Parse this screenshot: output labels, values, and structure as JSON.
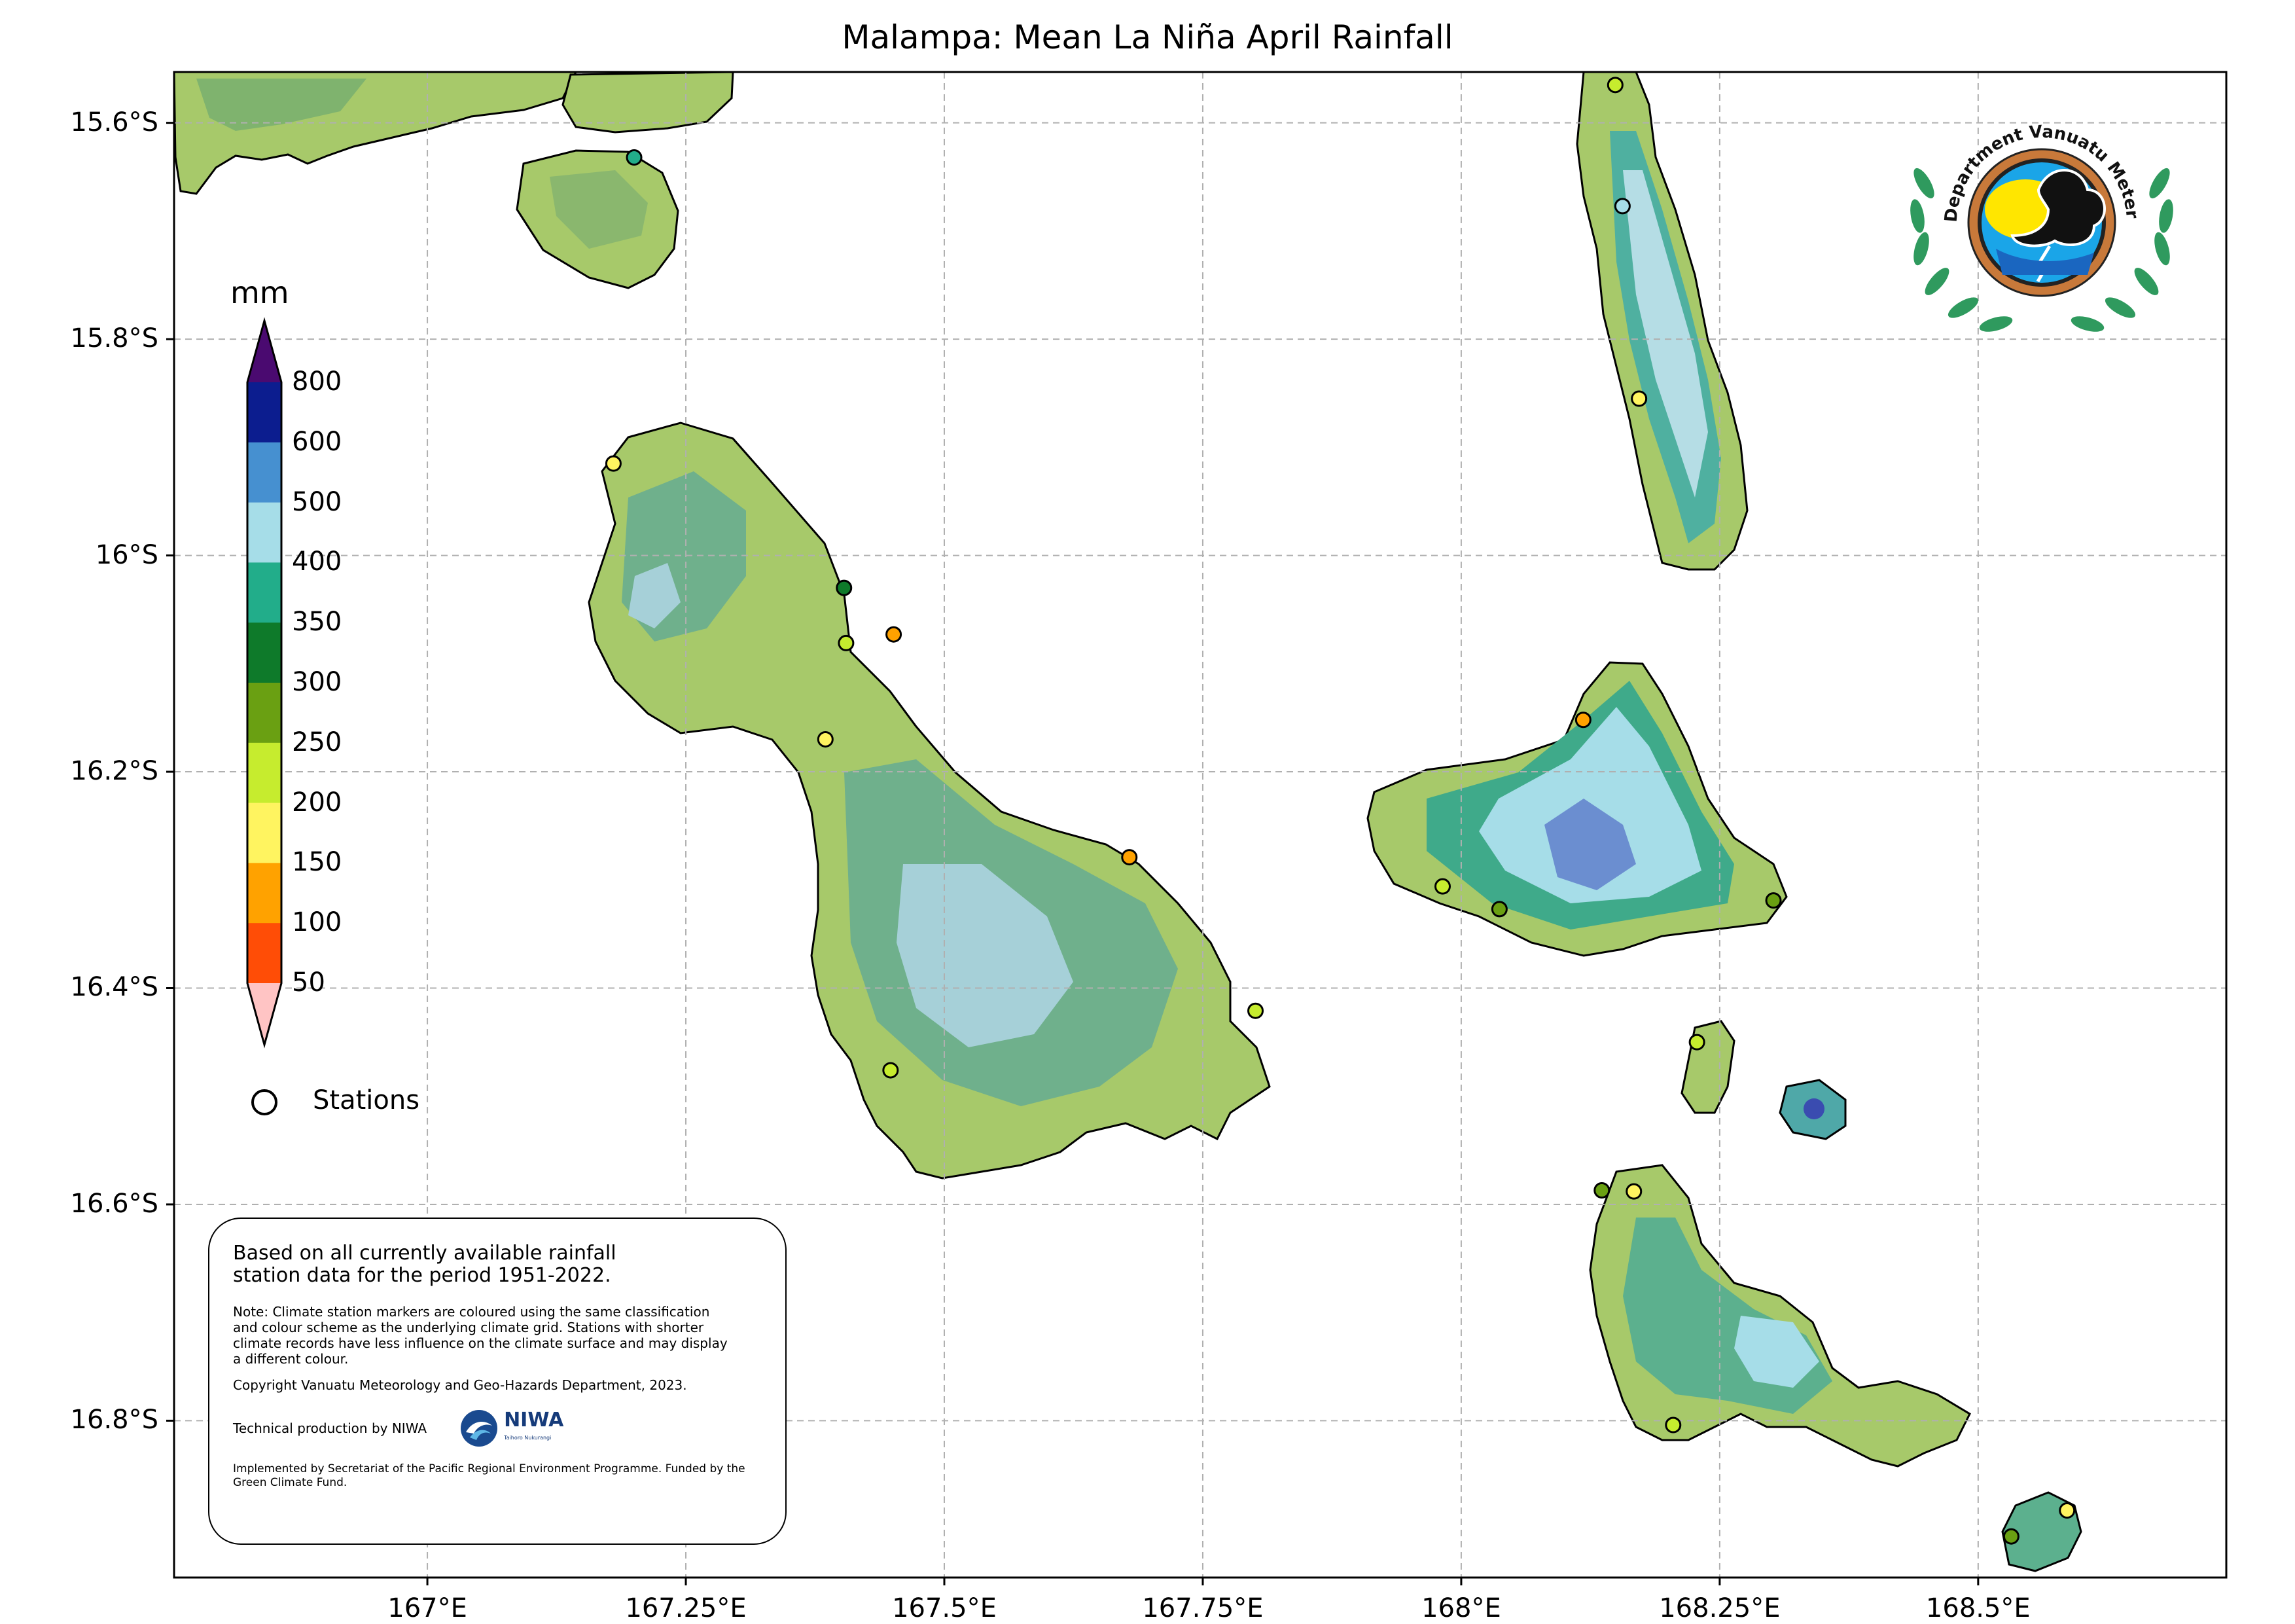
{
  "title": "Malampa: Mean La Niña April Rainfall",
  "axes": {
    "lat_labels": [
      "15.6°S",
      "15.8°S",
      "16°S",
      "16.2°S",
      "16.4°S",
      "16.6°S",
      "16.8°S"
    ],
    "lat_values": [
      -15.6,
      -15.8,
      -16.0,
      -16.2,
      -16.4,
      -16.6,
      -16.8
    ],
    "lon_labels": [
      "167°E",
      "167.25°E",
      "167.5°E",
      "167.75°E",
      "168°E",
      "168.25°E",
      "168.5°E"
    ],
    "lon_values": [
      167.0,
      167.25,
      167.5,
      167.75,
      168.0,
      168.25,
      168.5
    ],
    "lon_range": [
      166.755,
      168.74
    ],
    "lat_range": [
      -16.945,
      -15.553
    ],
    "grid": true
  },
  "colorbar": {
    "unit": "mm",
    "ticks": [
      "800",
      "600",
      "500",
      "400",
      "350",
      "300",
      "250",
      "200",
      "150",
      "100",
      "50"
    ],
    "colors": [
      "#0c1d8f",
      "#4690d0",
      "#a6dde8",
      "#22ad8a",
      "#0e7a2a",
      "#6aa012",
      "#c6ec2e",
      "#fff460",
      "#ffa200",
      "#ff4d06"
    ],
    "over_color": "#4a0a70",
    "under_color": "#ffc4c4"
  },
  "legend": {
    "stations_label": "Stations"
  },
  "stations": [
    {
      "lon": 167.2,
      "lat": -15.632,
      "color": "#22ad8a"
    },
    {
      "lon": 167.18,
      "lat": -15.915,
      "color": "#fff460"
    },
    {
      "lon": 167.403,
      "lat": -16.03,
      "color": "#0e7a2a"
    },
    {
      "lon": 167.451,
      "lat": -16.073,
      "color": "#ffa200"
    },
    {
      "lon": 167.405,
      "lat": -16.081,
      "color": "#c6ec2e"
    },
    {
      "lon": 167.385,
      "lat": -16.17,
      "color": "#fff460"
    },
    {
      "lon": 167.679,
      "lat": -16.279,
      "color": "#ffa200"
    },
    {
      "lon": 167.801,
      "lat": -16.421,
      "color": "#c6ec2e"
    },
    {
      "lon": 167.448,
      "lat": -16.476,
      "color": "#c6ec2e"
    },
    {
      "lon": 168.149,
      "lat": -15.565,
      "color": "#c6ec2e"
    },
    {
      "lon": 168.156,
      "lat": -15.677,
      "color": "#a6dde8"
    },
    {
      "lon": 168.172,
      "lat": -15.855,
      "color": "#fff460"
    },
    {
      "lon": 168.118,
      "lat": -16.152,
      "color": "#ffa200"
    },
    {
      "lon": 167.982,
      "lat": -16.306,
      "color": "#c6ec2e"
    },
    {
      "lon": 168.037,
      "lat": -16.327,
      "color": "#6aa012"
    },
    {
      "lon": 168.302,
      "lat": -16.319,
      "color": "#6aa012"
    },
    {
      "lon": 168.228,
      "lat": -16.45,
      "color": "#c6ec2e"
    },
    {
      "lon": 168.136,
      "lat": -16.587,
      "color": "#6aa012"
    },
    {
      "lon": 168.167,
      "lat": -16.588,
      "color": "#fff460"
    },
    {
      "lon": 168.205,
      "lat": -16.804,
      "color": "#c6ec2e"
    },
    {
      "lon": 168.586,
      "lat": -16.883,
      "color": "#fff460"
    },
    {
      "lon": 168.532,
      "lat": -16.907,
      "color": "#6aa012"
    }
  ],
  "info": {
    "main": "Based on all currently available rainfall station data for the period 1951-2022.",
    "note": "Note: Climate station markers are coloured using the same classification and colour scheme as the underlying climate grid. Stations with shorter climate records have less influence on the climate surface and may display a different colour.",
    "copyright": "Copyright Vanuatu Meteorology and Geo-Hazards Department, 2023.",
    "tech": "Technical production by NIWA",
    "niwa_word": "NIWA",
    "niwa_sub": "Taihoro Nukurangi",
    "implemented": "Implemented by Secretariat of the Pacific Regional Environment Programme. Funded by the Green Climate Fund."
  },
  "logo": {
    "text": "Department Vanuatu Meterology and Geo-Hazards",
    "ring_color": "#c8793a",
    "laurel_color": "#2f9a5e",
    "inner_color": "#1aa5e8",
    "sun_color": "#ffe600"
  }
}
